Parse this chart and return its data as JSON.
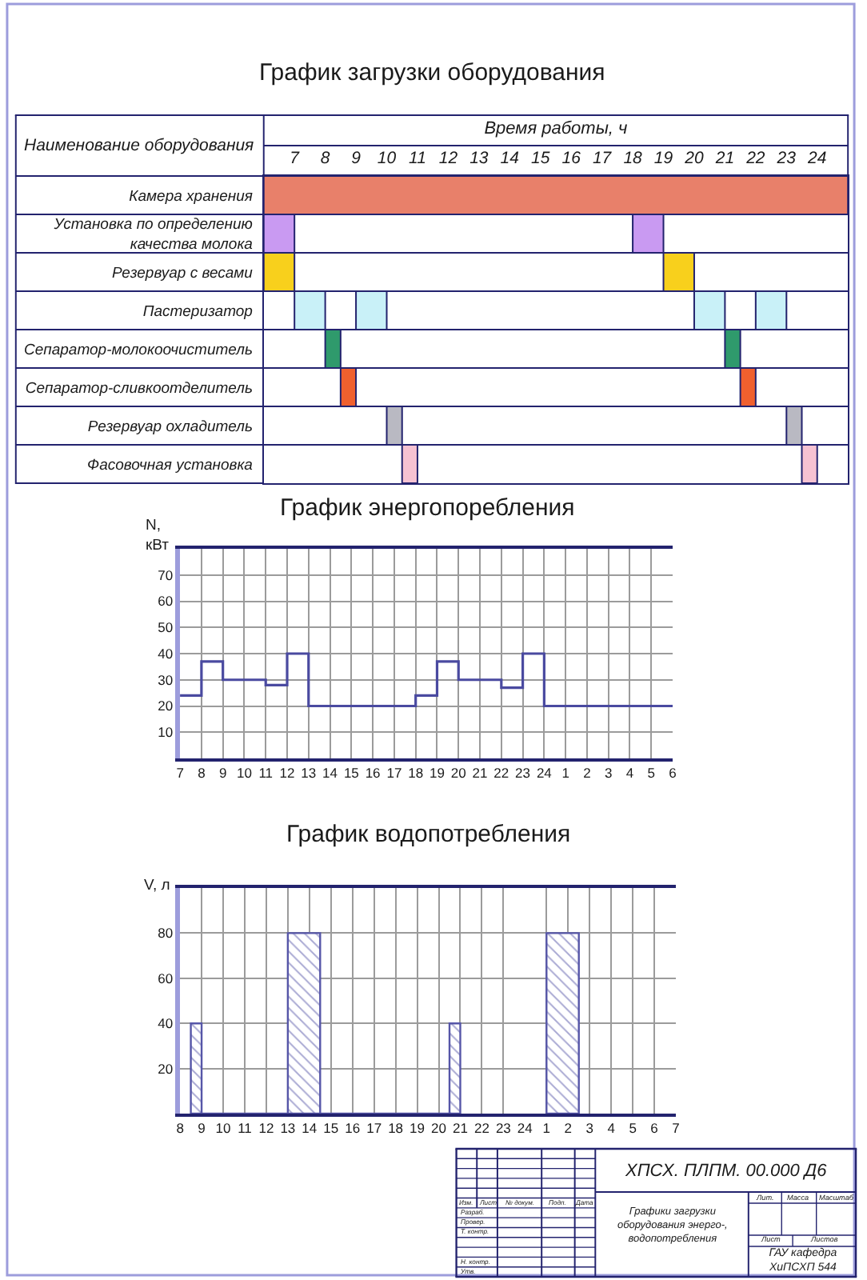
{
  "chart_data": [
    {
      "type": "bar",
      "orientation": "horizontal",
      "title": "График загрузки оборудования",
      "xlabel": "Время работы, ч",
      "ylabel": "Наименование оборудования",
      "categories": [
        "Камера хранения",
        "Установка по определению качества молока",
        "Резервуар с весами",
        "Пастеризатор",
        "Сепаратор-молокоочиститель",
        "Сепаратор-сливкоотделитель",
        "Резервуар охладитель",
        "Фасовочная установка"
      ],
      "series": [
        {
          "colors": [
            "#e8806a",
            "#c99af2",
            "#f8d01c",
            "#c9f1f8",
            "#2f9a6c",
            "#f0602e",
            "#b9b9c2",
            "#f6c2d2"
          ],
          "base": [
            6,
            6,
            6,
            7,
            8,
            8.5,
            10,
            10.5
          ],
          "values": [
            19,
            1,
            1,
            1,
            0.5,
            0.5,
            0.5,
            0.5
          ]
        },
        {
          "colors": [
            null,
            "#c99af2",
            "#f8d01c",
            "#c9f1f8",
            "#2f9a6c",
            "#f0602e",
            "#b9b9c2",
            "#f6c2d2"
          ],
          "base": [
            null,
            18,
            19,
            9,
            21,
            21.5,
            23,
            23.5
          ],
          "values": [
            null,
            1,
            1,
            1,
            0.5,
            0.5,
            0.5,
            0.5
          ]
        },
        {
          "colors": [
            null,
            null,
            null,
            "#c9f1f8",
            null,
            null,
            null,
            null
          ],
          "base": [
            null,
            null,
            null,
            20,
            null,
            null,
            null,
            null
          ],
          "values": [
            null,
            null,
            null,
            1,
            null,
            null,
            null,
            null
          ]
        },
        {
          "colors": [
            null,
            null,
            null,
            "#c9f1f8",
            null,
            null,
            null,
            null
          ],
          "base": [
            null,
            null,
            null,
            22,
            null,
            null,
            null,
            null
          ],
          "values": [
            null,
            null,
            null,
            1,
            null,
            null,
            null,
            null
          ]
        }
      ],
      "xlim": [
        6,
        25
      ],
      "xticks": [
        7,
        8,
        9,
        10,
        11,
        12,
        13,
        14,
        15,
        16,
        17,
        18,
        19,
        20,
        21,
        22,
        23,
        24
      ],
      "grid": "y"
    },
    {
      "type": "step",
      "title": "График энергопоребления",
      "ylabel": "N, кВт",
      "categories": [
        "7",
        "8",
        "9",
        "10",
        "11",
        "12",
        "13",
        "14",
        "15",
        "16",
        "17",
        "18",
        "19",
        "20",
        "21",
        "22",
        "23",
        "24",
        "1",
        "2",
        "3",
        "4",
        "5",
        "6"
      ],
      "series": [
        {
          "color": "#4a4aa0",
          "values": [
            24,
            37,
            30,
            30,
            28,
            40,
            20,
            20,
            20,
            20,
            20,
            24,
            37,
            30,
            30,
            27,
            40,
            20,
            20,
            20,
            20,
            20,
            20,
            20
          ]
        }
      ],
      "ylim": [
        0,
        80
      ],
      "yticks": [
        10,
        20,
        30,
        40,
        50,
        60,
        70
      ],
      "grid": true
    },
    {
      "type": "histogram",
      "title": "График водопотребления",
      "ylabel": "V, л",
      "bins": [
        8.5,
        9,
        13,
        14.5,
        20.5,
        21
      ],
      "values": [
        40,
        0,
        80,
        0,
        40
      ],
      "color": "#5656a8",
      "xlim": [
        8,
        24
      ],
      "xticks": [
        8,
        9,
        10,
        11,
        12,
        13,
        14,
        15,
        16,
        17,
        18,
        19,
        20,
        21,
        22,
        23,
        24
      ],
      "ylim": [
        0,
        100
      ],
      "yticks": [
        20,
        40,
        60,
        80
      ],
      "grid": true
    },
    {
      "type": "histogram",
      "bins": [
        1,
        2.5
      ],
      "values": [
        80
      ],
      "color": "#5656a8",
      "xlim": [
        0,
        7
      ],
      "xticks": [
        1,
        2,
        3,
        4,
        5,
        6,
        7
      ],
      "ylim": [
        0,
        100
      ],
      "yticks": [
        20,
        40,
        60,
        80
      ],
      "grid": true,
      "tick_labels": "x"
    },
    {
      "type": "other",
      "title": "ХПСХ. ПЛПМ. 00.000 Д6",
      "subtitle": "Графики загрузки оборудования энерго-, водопотребления",
      "annotations": [
        "Изм.",
        "Лист",
        "№ докум.",
        "Подп.",
        "Дата",
        "Разраб.",
        "Провер.",
        "Т. контр.",
        "Н. контр.",
        "Утв.",
        "Лит.",
        "Масса",
        "Масштаб",
        "Лист",
        "Листов",
        "ГАУ кафедра ХиПСХП 544"
      ]
    }
  ]
}
